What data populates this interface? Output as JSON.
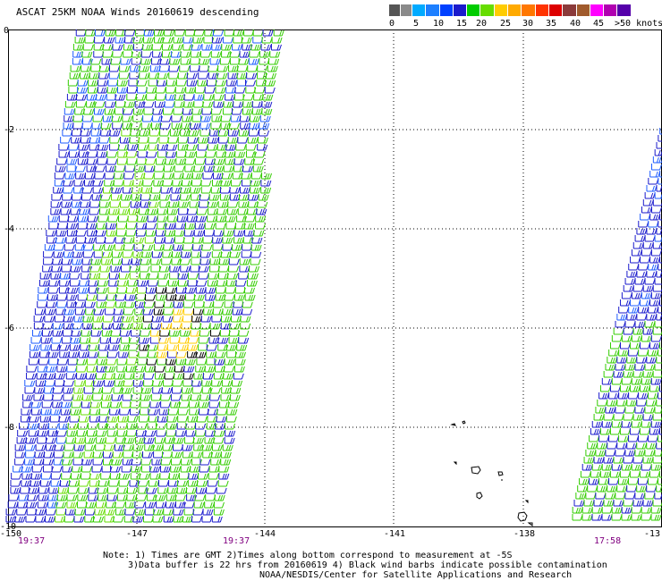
{
  "title": "ASCAT 25KM NOAA Winds 20160619 descending",
  "legend": {
    "colors": [
      "#555555",
      "#8a8a8a",
      "#00aaff",
      "#1d7fff",
      "#0040ff",
      "#1a1acc",
      "#00cc00",
      "#66dd00",
      "#ffcc00",
      "#ffaa00",
      "#ff7700",
      "#ff3300",
      "#dd0000",
      "#8b3a3a",
      "#a05a2c",
      "#ff00ff",
      "#b000b0",
      "#5500aa"
    ],
    "labels": [
      "0",
      "5",
      "10",
      "15",
      "20",
      "25",
      "30",
      "35",
      "40",
      "45",
      ">50 knots"
    ]
  },
  "axes": {
    "lon_labels": [
      "-150",
      "-147",
      "-144",
      "-141",
      "-138",
      "-13"
    ],
    "lat_labels": [
      "0",
      "-2",
      "-4",
      "-6",
      "-8",
      "-10"
    ]
  },
  "swath_times": [
    "19:37",
    "19:37",
    "17:58"
  ],
  "notes": {
    "line1": "Note: 1) Times are GMT 2)Times along bottom correspond to measurement at -5S",
    "line2": "3)Data buffer is 22 hrs from 20160619 4) Black wind barbs indicate possible contamination",
    "credit": "NOAA/NESDIS/Center for Satellite Applications and Research"
  },
  "barb_colors": {
    "blue": "#1a1acc",
    "mid_blue": "#1e5cff",
    "green": "#33cc00",
    "light_green": "#66dd00",
    "yellow": "#ffcc00",
    "black": "#000000"
  }
}
